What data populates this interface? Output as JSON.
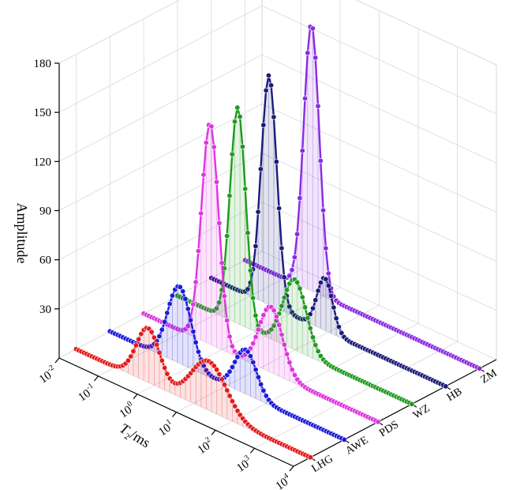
{
  "chart_data": {
    "type": "line",
    "subtype": "3d-waterfall",
    "title": "",
    "ylabel": "Amplitude",
    "xlabel": "T2/ms",
    "xlabel_main": "T",
    "xlabel_sub": "2",
    "xlabel_unit": "/ms",
    "x_scale": "log",
    "x_range": [
      0.01,
      10000
    ],
    "x_tick_values": [
      0.01,
      0.1,
      1,
      10,
      100,
      1000,
      10000
    ],
    "x_tick_bases": [
      "10",
      "10",
      "10",
      "10",
      "10",
      "10",
      "10"
    ],
    "x_tick_exps": [
      "-2",
      "-1",
      "0",
      "1",
      "2",
      "3",
      "4"
    ],
    "z_range": [
      0,
      180
    ],
    "z_ticks": [
      "30",
      "60",
      "90",
      "120",
      "150",
      "180"
    ],
    "z_tick_values": [
      30,
      60,
      90,
      120,
      150,
      180
    ],
    "grid": true,
    "categories": [
      "LHG",
      "AWE",
      "PDS",
      "WZ",
      "HB",
      "ZM"
    ],
    "series": [
      {
        "name": "LHG",
        "color": "#e41a1c",
        "peaks": [
          {
            "t2": 0.7,
            "amplitude": 33,
            "width_decades": 0.3
          },
          {
            "t2": 25,
            "amplitude": 30,
            "width_decades": 0.45
          }
        ]
      },
      {
        "name": "AWE",
        "color": "#1c1cd9",
        "peaks": [
          {
            "t2": 0.6,
            "amplitude": 47,
            "width_decades": 0.3
          },
          {
            "t2": 30,
            "amplitude": 27,
            "width_decades": 0.28
          }
        ]
      },
      {
        "name": "PDS",
        "color": "#e034e0",
        "peaks": [
          {
            "t2": 0.5,
            "amplitude": 135,
            "width_decades": 0.22
          },
          {
            "t2": 18,
            "amplitude": 40,
            "width_decades": 0.3
          }
        ]
      },
      {
        "name": "WZ",
        "color": "#1f9b1f",
        "peaks": [
          {
            "t2": 0.35,
            "amplitude": 132,
            "width_decades": 0.2
          },
          {
            "t2": 10,
            "amplitude": 43,
            "width_decades": 0.3
          }
        ]
      },
      {
        "name": "HB",
        "color": "#1c1c7a",
        "peaks": [
          {
            "t2": 0.3,
            "amplitude": 140,
            "width_decades": 0.2
          },
          {
            "t2": 8,
            "amplitude": 32,
            "width_decades": 0.2
          }
        ]
      },
      {
        "name": "ZM",
        "color": "#8a2be2",
        "peaks": [
          {
            "t2": 0.5,
            "amplitude": 163,
            "width_decades": 0.2
          }
        ]
      }
    ]
  }
}
